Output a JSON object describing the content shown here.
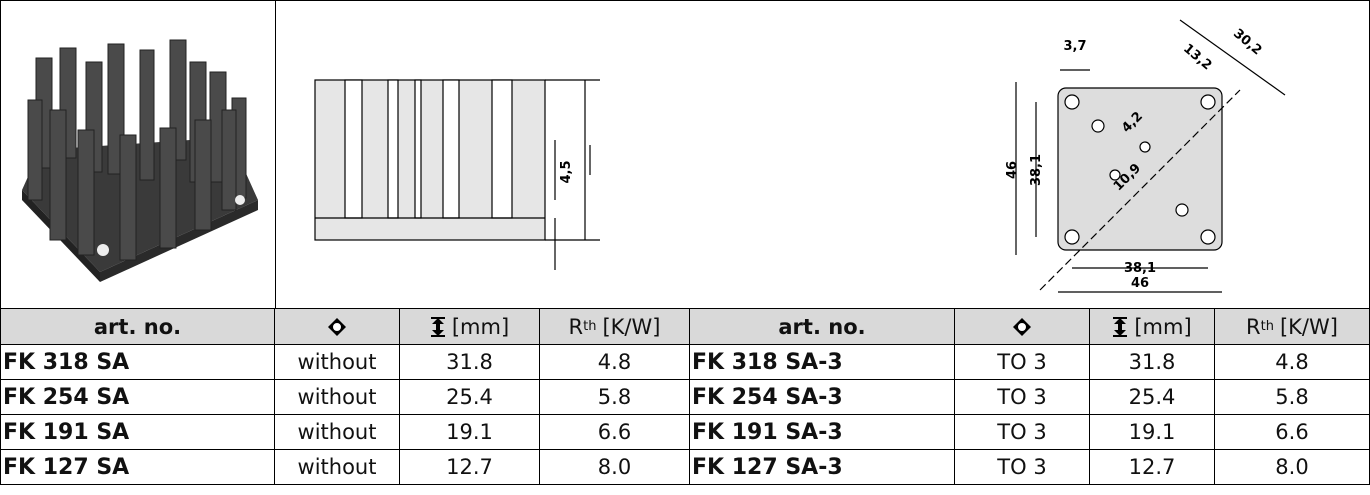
{
  "table": {
    "header": {
      "art_no": "art. no.",
      "height_unit": "[mm]",
      "rth": "R",
      "rth_sub": "th",
      "rth_unit": "[K/W]"
    },
    "rows": [
      [
        "FK 318 SA",
        "without",
        "31.8",
        "4.8",
        "FK 318 SA-3",
        "TO 3",
        "31.8",
        "4.8"
      ],
      [
        "FK 254 SA",
        "without",
        "25.4",
        "5.8",
        "FK 254 SA-3",
        "TO 3",
        "25.4",
        "5.8"
      ],
      [
        "FK 191 SA",
        "without",
        "19.1",
        "6.6",
        "FK 191 SA-3",
        "TO 3",
        "19.1",
        "6.6"
      ],
      [
        "FK 127 SA",
        "without",
        "12.7",
        "8.0",
        "FK 127 SA-3",
        "TO 3",
        "12.7",
        "8.0"
      ]
    ]
  },
  "drawing": {
    "side_dim": "4,5",
    "top_dims": [
      "3,7",
      "13,2",
      "30,2",
      "4,2",
      "46",
      "38,1",
      "10,9",
      "38,1",
      "46"
    ]
  }
}
